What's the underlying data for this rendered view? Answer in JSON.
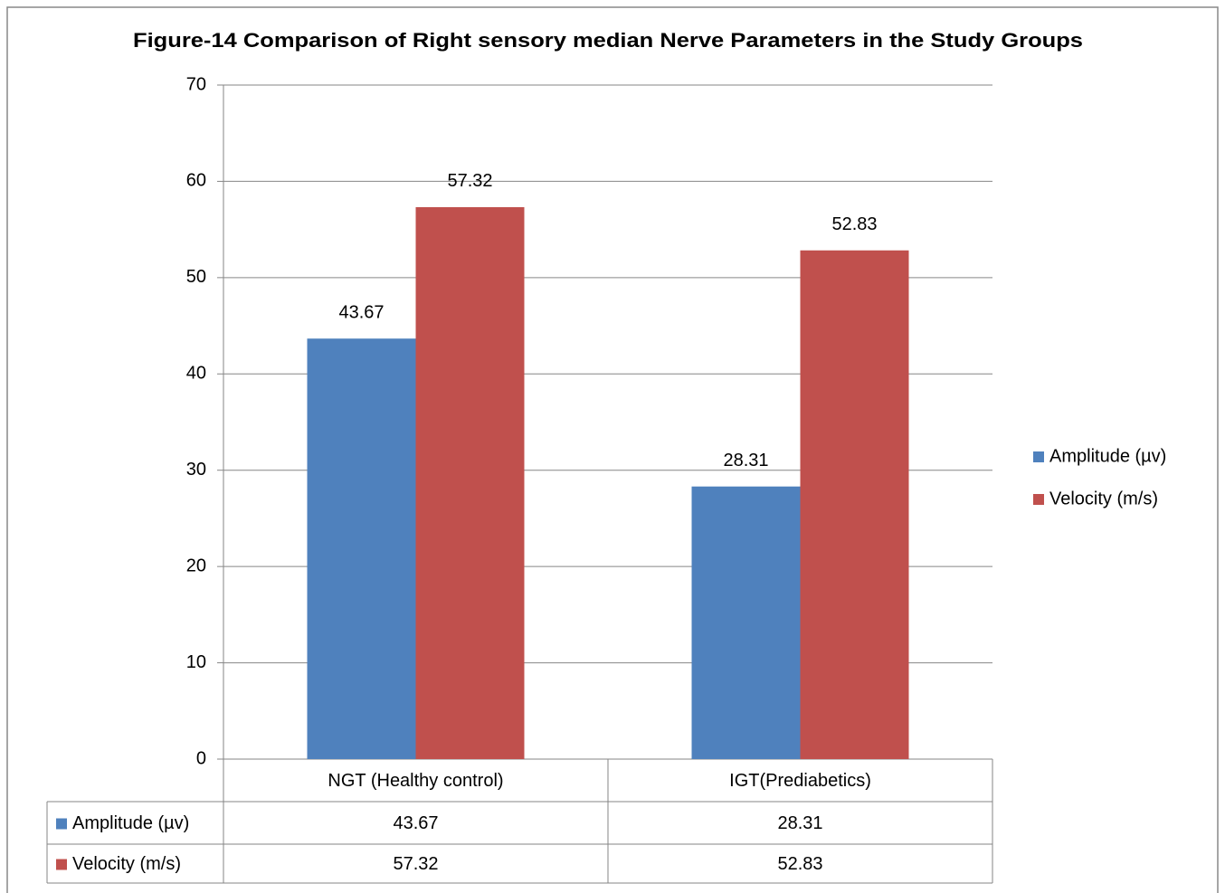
{
  "chart_data": {
    "type": "bar",
    "title": "Figure-14 Comparison of Right sensory median Nerve Parameters in the Study Groups",
    "categories": [
      "NGT (Healthy control)",
      "IGT(Prediabetics)"
    ],
    "series": [
      {
        "name": "Amplitude (µv)",
        "color": "#4f81bd",
        "values": [
          43.67,
          28.31
        ]
      },
      {
        "name": "Velocity (m/s)",
        "color": "#c0504d",
        "values": [
          57.32,
          52.83
        ]
      }
    ],
    "ylim": [
      0,
      70
    ],
    "yticks": [
      0,
      10,
      20,
      30,
      40,
      50,
      60,
      70
    ],
    "grid": true,
    "legend": "right"
  }
}
